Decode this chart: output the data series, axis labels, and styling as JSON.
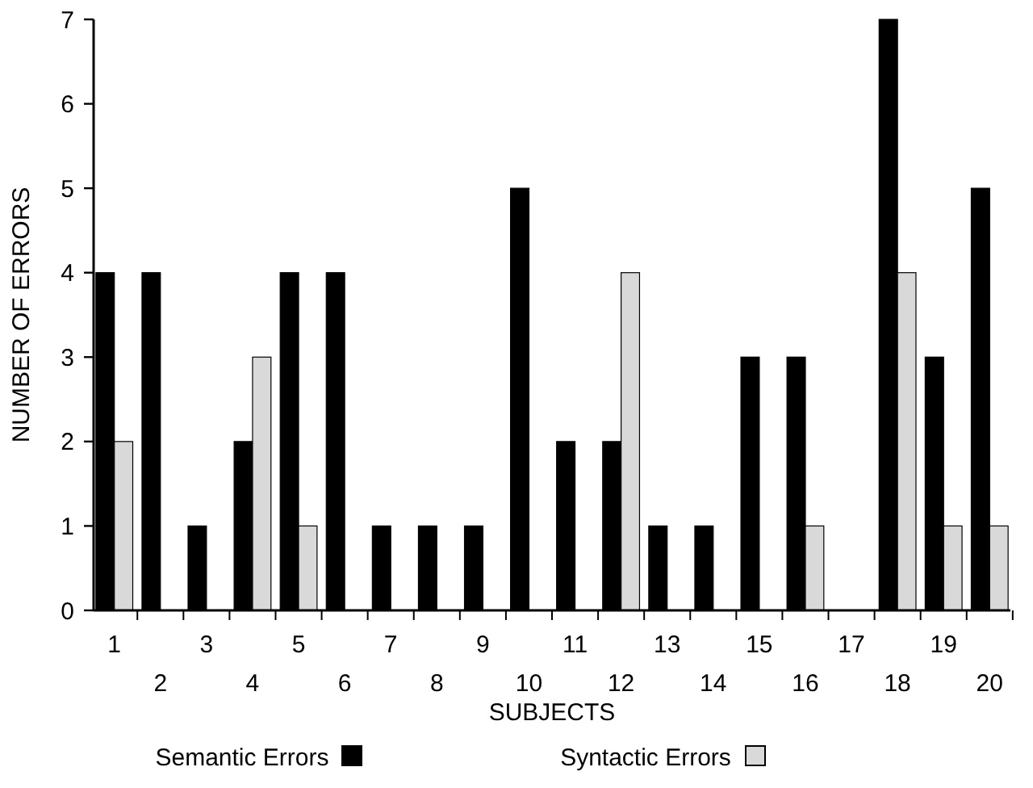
{
  "chart_data": {
    "type": "bar",
    "xlabel": "SUBJECTS",
    "ylabel": "NUMBER OF ERRORS",
    "categories": [
      "1",
      "2",
      "3",
      "4",
      "5",
      "6",
      "7",
      "8",
      "9",
      "10",
      "11",
      "12",
      "13",
      "14",
      "15",
      "16",
      "17",
      "18",
      "19",
      "20"
    ],
    "series": [
      {
        "name": "Semantic Errors",
        "color": "#000000",
        "values": [
          4,
          4,
          1,
          2,
          4,
          4,
          1,
          1,
          1,
          5,
          2,
          2,
          1,
          1,
          3,
          3,
          0,
          7,
          3,
          5
        ]
      },
      {
        "name": "Syntactic Errors",
        "color": "#d9d9d9",
        "values": [
          2,
          0,
          0,
          3,
          1,
          0,
          0,
          0,
          0,
          0,
          0,
          4,
          0,
          0,
          0,
          1,
          0,
          4,
          1,
          1
        ]
      }
    ],
    "ylim": [
      0,
      7
    ],
    "yticks": [
      0,
      1,
      2,
      3,
      4,
      5,
      6,
      7
    ],
    "grid": false,
    "legend": "bottom"
  }
}
